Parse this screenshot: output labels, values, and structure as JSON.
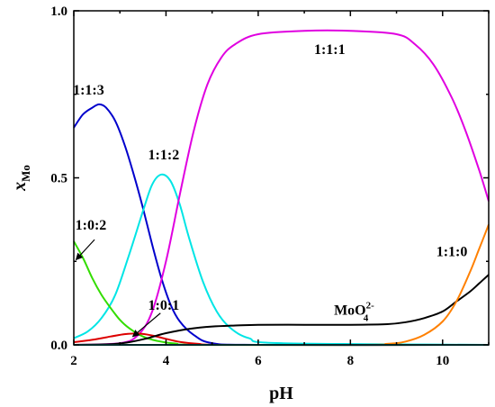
{
  "chart_data": {
    "type": "line",
    "title": "",
    "xlabel": "pH",
    "ylabel": {
      "main": "x",
      "sub": "Mo"
    },
    "xlim": [
      2,
      11
    ],
    "ylim": [
      0,
      1
    ],
    "xticks": [
      2,
      4,
      6,
      8,
      10
    ],
    "yticks": [
      0.0,
      0.5,
      1.0
    ],
    "ytick_labels": [
      "0.0",
      "0.5",
      "1.0"
    ],
    "grid": false,
    "legend": "none",
    "series": [
      {
        "name": "1:1:3",
        "color": "#0000cc",
        "points": [
          [
            2.0,
            0.65
          ],
          [
            2.2,
            0.69
          ],
          [
            2.4,
            0.71
          ],
          [
            2.55,
            0.72
          ],
          [
            2.7,
            0.71
          ],
          [
            2.9,
            0.67
          ],
          [
            3.1,
            0.6
          ],
          [
            3.3,
            0.51
          ],
          [
            3.5,
            0.41
          ],
          [
            3.7,
            0.3
          ],
          [
            3.9,
            0.2
          ],
          [
            4.1,
            0.12
          ],
          [
            4.3,
            0.07
          ],
          [
            4.6,
            0.03
          ],
          [
            5.0,
            0.005
          ],
          [
            6.0,
            0.0
          ],
          [
            11.0,
            0.0
          ]
        ]
      },
      {
        "name": "1:1:2",
        "color": "#00e5e5",
        "points": [
          [
            2.0,
            0.02
          ],
          [
            2.3,
            0.04
          ],
          [
            2.6,
            0.08
          ],
          [
            2.9,
            0.15
          ],
          [
            3.2,
            0.27
          ],
          [
            3.5,
            0.4
          ],
          [
            3.7,
            0.48
          ],
          [
            3.9,
            0.51
          ],
          [
            4.1,
            0.49
          ],
          [
            4.3,
            0.42
          ],
          [
            4.5,
            0.32
          ],
          [
            4.8,
            0.19
          ],
          [
            5.1,
            0.1
          ],
          [
            5.4,
            0.05
          ],
          [
            5.8,
            0.02
          ],
          [
            6.5,
            0.005
          ],
          [
            11.0,
            0.0
          ]
        ]
      },
      {
        "name": "1:1:1",
        "color": "#e000e0",
        "points": [
          [
            2.0,
            0.0
          ],
          [
            3.0,
            0.005
          ],
          [
            3.4,
            0.03
          ],
          [
            3.7,
            0.1
          ],
          [
            4.0,
            0.25
          ],
          [
            4.3,
            0.45
          ],
          [
            4.6,
            0.64
          ],
          [
            4.9,
            0.78
          ],
          [
            5.2,
            0.86
          ],
          [
            5.5,
            0.9
          ],
          [
            6.0,
            0.93
          ],
          [
            7.0,
            0.94
          ],
          [
            8.0,
            0.94
          ],
          [
            9.0,
            0.93
          ],
          [
            9.4,
            0.9
          ],
          [
            9.8,
            0.84
          ],
          [
            10.2,
            0.74
          ],
          [
            10.5,
            0.64
          ],
          [
            10.8,
            0.52
          ],
          [
            11.0,
            0.43
          ]
        ]
      },
      {
        "name": "1:0:2",
        "color": "#33dd00",
        "points": [
          [
            2.0,
            0.31
          ],
          [
            2.2,
            0.26
          ],
          [
            2.4,
            0.2
          ],
          [
            2.6,
            0.15
          ],
          [
            2.8,
            0.11
          ],
          [
            3.0,
            0.075
          ],
          [
            3.2,
            0.05
          ],
          [
            3.5,
            0.025
          ],
          [
            3.8,
            0.012
          ],
          [
            4.2,
            0.004
          ],
          [
            5.0,
            0.0
          ],
          [
            11.0,
            0.0
          ]
        ]
      },
      {
        "name": "1:0:1",
        "color": "#dd0000",
        "points": [
          [
            2.0,
            0.008
          ],
          [
            2.4,
            0.015
          ],
          [
            2.8,
            0.025
          ],
          [
            3.1,
            0.032
          ],
          [
            3.4,
            0.034
          ],
          [
            3.7,
            0.028
          ],
          [
            4.0,
            0.018
          ],
          [
            4.3,
            0.009
          ],
          [
            4.7,
            0.003
          ],
          [
            5.5,
            0.0
          ],
          [
            11.0,
            0.0
          ]
        ]
      },
      {
        "name": "MoO4 2-",
        "color": "#000000",
        "points": [
          [
            2.0,
            0.0
          ],
          [
            2.8,
            0.002
          ],
          [
            3.2,
            0.008
          ],
          [
            3.6,
            0.02
          ],
          [
            4.0,
            0.035
          ],
          [
            4.5,
            0.048
          ],
          [
            5.0,
            0.055
          ],
          [
            5.5,
            0.058
          ],
          [
            6.0,
            0.06
          ],
          [
            7.0,
            0.06
          ],
          [
            8.0,
            0.06
          ],
          [
            8.8,
            0.062
          ],
          [
            9.2,
            0.068
          ],
          [
            9.6,
            0.08
          ],
          [
            10.0,
            0.1
          ],
          [
            10.3,
            0.13
          ],
          [
            10.6,
            0.16
          ],
          [
            10.8,
            0.185
          ],
          [
            11.0,
            0.21
          ]
        ]
      },
      {
        "name": "1:1:0",
        "color": "#ff8000",
        "points": [
          [
            2.0,
            0.0
          ],
          [
            8.0,
            0.0
          ],
          [
            8.8,
            0.003
          ],
          [
            9.2,
            0.01
          ],
          [
            9.6,
            0.03
          ],
          [
            10.0,
            0.07
          ],
          [
            10.3,
            0.13
          ],
          [
            10.6,
            0.22
          ],
          [
            10.8,
            0.29
          ],
          [
            11.0,
            0.36
          ]
        ]
      },
      {
        "name": "",
        "color": "#00aaaa",
        "points": [
          [
            2.0,
            0.0
          ],
          [
            11.0,
            0.0
          ]
        ]
      }
    ],
    "annotations": [
      {
        "name": "label-113",
        "text": "1:1:3",
        "x": 2.32,
        "y": 0.75
      },
      {
        "name": "label-112",
        "text": "1:1:2",
        "x": 3.95,
        "y": 0.555
      },
      {
        "name": "label-111",
        "text": "1:1:1",
        "x": 7.55,
        "y": 0.87
      },
      {
        "name": "label-102",
        "text": "1:0:2",
        "x": 2.37,
        "y": 0.345
      },
      {
        "name": "label-101",
        "text": "1:0:1",
        "x": 3.95,
        "y": 0.105
      },
      {
        "name": "label-110",
        "text": "1:1:0",
        "x": 10.2,
        "y": 0.265
      },
      {
        "name": "label-moo4",
        "text": "MoO",
        "sub": "4",
        "sup": "2-",
        "x": 8.08,
        "y": 0.09
      }
    ],
    "arrows": [
      {
        "name": "arrow-102",
        "from": [
          2.45,
          0.315
        ],
        "to": [
          2.05,
          0.255
        ]
      },
      {
        "name": "arrow-101",
        "from": [
          3.88,
          0.095
        ],
        "to": [
          3.28,
          0.025
        ]
      }
    ]
  }
}
